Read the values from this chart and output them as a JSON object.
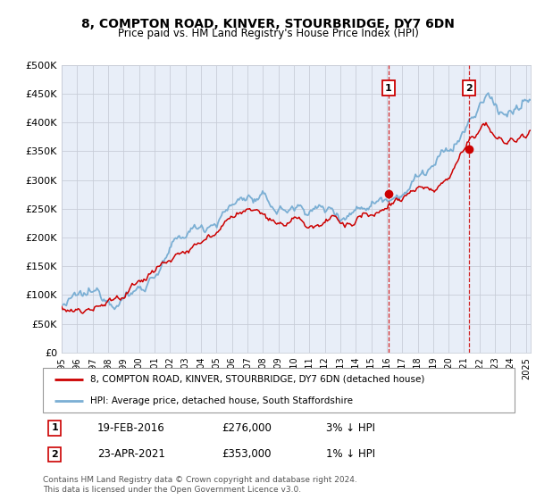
{
  "title": "8, COMPTON ROAD, KINVER, STOURBRIDGE, DY7 6DN",
  "subtitle": "Price paid vs. HM Land Registry's House Price Index (HPI)",
  "ylabel_ticks": [
    "£0",
    "£50K",
    "£100K",
    "£150K",
    "£200K",
    "£250K",
    "£300K",
    "£350K",
    "£400K",
    "£450K",
    "£500K"
  ],
  "ytick_values": [
    0,
    50000,
    100000,
    150000,
    200000,
    250000,
    300000,
    350000,
    400000,
    450000,
    500000
  ],
  "ylim": [
    0,
    500000
  ],
  "xlim_start": 1995.0,
  "xlim_end": 2025.3,
  "hpi_color": "#7bafd4",
  "price_color": "#cc0000",
  "bg_color": "#e8eef8",
  "grid_color": "#c8cdd8",
  "sale1_x": 2016.12,
  "sale1_y": 276000,
  "sale2_x": 2021.31,
  "sale2_y": 353000,
  "sale1_label": "1",
  "sale2_label": "2",
  "sale1_date": "19-FEB-2016",
  "sale1_price": "£276,000",
  "sale1_hpi": "3% ↓ HPI",
  "sale2_date": "23-APR-2021",
  "sale2_price": "£353,000",
  "sale2_hpi": "1% ↓ HPI",
  "legend_line1": "8, COMPTON ROAD, KINVER, STOURBRIDGE, DY7 6DN (detached house)",
  "legend_line2": "HPI: Average price, detached house, South Staffordshire",
  "footer": "Contains HM Land Registry data © Crown copyright and database right 2024.\nThis data is licensed under the Open Government Licence v3.0.",
  "xtick_years": [
    1995,
    1996,
    1997,
    1998,
    1999,
    2000,
    2001,
    2002,
    2003,
    2004,
    2005,
    2006,
    2007,
    2008,
    2009,
    2010,
    2011,
    2012,
    2013,
    2014,
    2015,
    2016,
    2017,
    2018,
    2019,
    2020,
    2021,
    2022,
    2023,
    2024,
    2025
  ]
}
